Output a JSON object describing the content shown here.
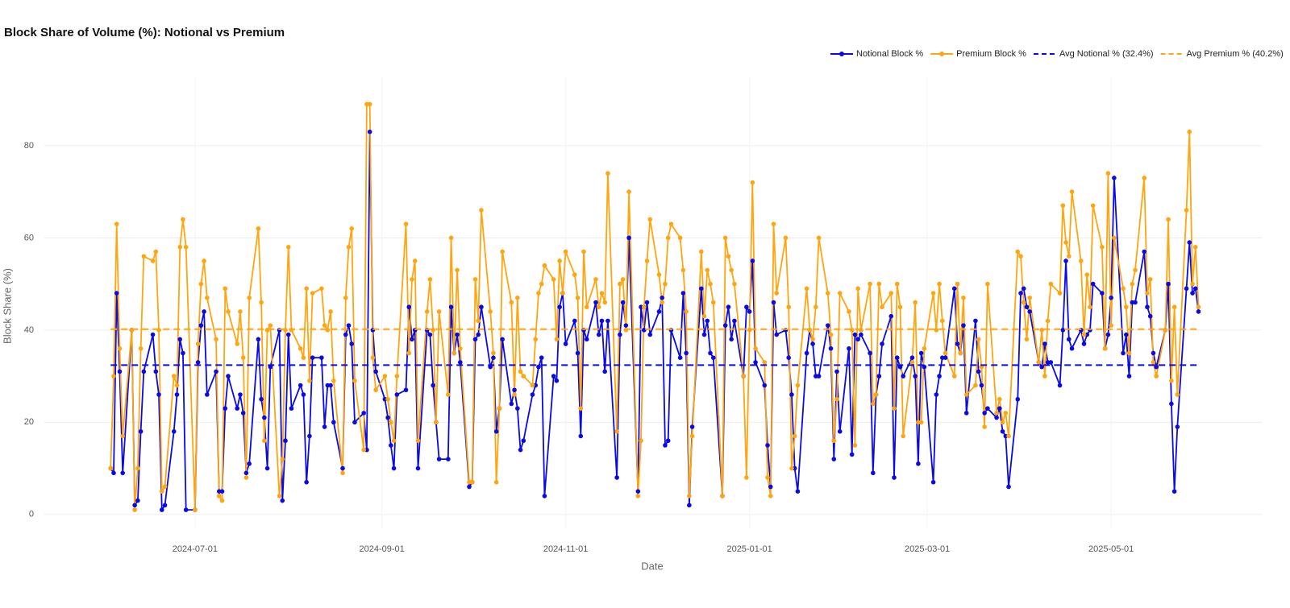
{
  "chart_data": {
    "type": "line",
    "title": "Block Share of Volume (%): Notional vs Premium",
    "x_label": "Date",
    "y_label": "Block Share (%)",
    "xlim": [
      "2024-05-12",
      "2025-06-20"
    ],
    "xticks": [
      "2024-07-01",
      "2024-09-01",
      "2024-11-01",
      "2025-01-01",
      "2025-03-01",
      "2025-05-01"
    ],
    "ylim": [
      -3,
      95
    ],
    "yticks": [
      0,
      20,
      40,
      60,
      80
    ],
    "grid": true,
    "legend": "top-right",
    "x": [
      "2024-06-03",
      "2024-06-04",
      "2024-06-05",
      "2024-06-06",
      "2024-06-07",
      "2024-06-10",
      "2024-06-11",
      "2024-06-12",
      "2024-06-13",
      "2024-06-14",
      "2024-06-17",
      "2024-06-18",
      "2024-06-19",
      "2024-06-20",
      "2024-06-21",
      "2024-06-24",
      "2024-06-25",
      "2024-06-26",
      "2024-06-27",
      "2024-06-28",
      "2024-07-01",
      "2024-07-02",
      "2024-07-03",
      "2024-07-04",
      "2024-07-05",
      "2024-07-08",
      "2024-07-09",
      "2024-07-10",
      "2024-07-11",
      "2024-07-12",
      "2024-07-15",
      "2024-07-16",
      "2024-07-17",
      "2024-07-18",
      "2024-07-19",
      "2024-07-22",
      "2024-07-23",
      "2024-07-24",
      "2024-07-25",
      "2024-07-26",
      "2024-07-29",
      "2024-07-30",
      "2024-07-31",
      "2024-08-01",
      "2024-08-02",
      "2024-08-05",
      "2024-08-06",
      "2024-08-07",
      "2024-08-08",
      "2024-08-09",
      "2024-08-12",
      "2024-08-13",
      "2024-08-14",
      "2024-08-15",
      "2024-08-16",
      "2024-08-19",
      "2024-08-20",
      "2024-08-21",
      "2024-08-22",
      "2024-08-23",
      "2024-08-26",
      "2024-08-27",
      "2024-08-28",
      "2024-08-29",
      "2024-08-30",
      "2024-09-02",
      "2024-09-03",
      "2024-09-04",
      "2024-09-05",
      "2024-09-06",
      "2024-09-09",
      "2024-09-10",
      "2024-09-11",
      "2024-09-12",
      "2024-09-13",
      "2024-09-16",
      "2024-09-17",
      "2024-09-18",
      "2024-09-19",
      "2024-09-20",
      "2024-09-23",
      "2024-09-24",
      "2024-09-25",
      "2024-09-26",
      "2024-09-27",
      "2024-09-30",
      "2024-10-01",
      "2024-10-02",
      "2024-10-03",
      "2024-10-04",
      "2024-10-07",
      "2024-10-08",
      "2024-10-09",
      "2024-10-10",
      "2024-10-11",
      "2024-10-14",
      "2024-10-15",
      "2024-10-16",
      "2024-10-17",
      "2024-10-18",
      "2024-10-21",
      "2024-10-22",
      "2024-10-23",
      "2024-10-24",
      "2024-10-25",
      "2024-10-28",
      "2024-10-29",
      "2024-10-30",
      "2024-10-31",
      "2024-11-01",
      "2024-11-04",
      "2024-11-05",
      "2024-11-06",
      "2024-11-07",
      "2024-11-08",
      "2024-11-11",
      "2024-11-12",
      "2024-11-13",
      "2024-11-14",
      "2024-11-15",
      "2024-11-18",
      "2024-11-19",
      "2024-11-20",
      "2024-11-21",
      "2024-11-22",
      "2024-11-25",
      "2024-11-26",
      "2024-11-27",
      "2024-11-28",
      "2024-11-29",
      "2024-12-02",
      "2024-12-03",
      "2024-12-04",
      "2024-12-05",
      "2024-12-06",
      "2024-12-09",
      "2024-12-10",
      "2024-12-11",
      "2024-12-12",
      "2024-12-13",
      "2024-12-16",
      "2024-12-17",
      "2024-12-18",
      "2024-12-19",
      "2024-12-20",
      "2024-12-23",
      "2024-12-24",
      "2024-12-25",
      "2024-12-26",
      "2024-12-27",
      "2024-12-30",
      "2024-12-31",
      "2025-01-01",
      "2025-01-02",
      "2025-01-03",
      "2025-01-06",
      "2025-01-07",
      "2025-01-08",
      "2025-01-09",
      "2025-01-10",
      "2025-01-13",
      "2025-01-14",
      "2025-01-15",
      "2025-01-16",
      "2025-01-17",
      "2025-01-20",
      "2025-01-21",
      "2025-01-22",
      "2025-01-23",
      "2025-01-24",
      "2025-01-27",
      "2025-01-28",
      "2025-01-29",
      "2025-01-30",
      "2025-01-31",
      "2025-02-03",
      "2025-02-04",
      "2025-02-05",
      "2025-02-06",
      "2025-02-07",
      "2025-02-10",
      "2025-02-11",
      "2025-02-12",
      "2025-02-13",
      "2025-02-14",
      "2025-02-17",
      "2025-02-18",
      "2025-02-19",
      "2025-02-20",
      "2025-02-21",
      "2025-02-24",
      "2025-02-25",
      "2025-02-26",
      "2025-02-27",
      "2025-02-28",
      "2025-03-03",
      "2025-03-04",
      "2025-03-05",
      "2025-03-06",
      "2025-03-07",
      "2025-03-10",
      "2025-03-11",
      "2025-03-12",
      "2025-03-13",
      "2025-03-14",
      "2025-03-17",
      "2025-03-18",
      "2025-03-19",
      "2025-03-20",
      "2025-03-21",
      "2025-03-24",
      "2025-03-25",
      "2025-03-26",
      "2025-03-27",
      "2025-03-28",
      "2025-03-31",
      "2025-04-01",
      "2025-04-02",
      "2025-04-03",
      "2025-04-04",
      "2025-04-07",
      "2025-04-08",
      "2025-04-09",
      "2025-04-10",
      "2025-04-11",
      "2025-04-14",
      "2025-04-15",
      "2025-04-16",
      "2025-04-17",
      "2025-04-18",
      "2025-04-21",
      "2025-04-22",
      "2025-04-23",
      "2025-04-24",
      "2025-04-25",
      "2025-04-28",
      "2025-04-29",
      "2025-04-30",
      "2025-05-01",
      "2025-05-02",
      "2025-05-05",
      "2025-05-06",
      "2025-05-07",
      "2025-05-08",
      "2025-05-09",
      "2025-05-12",
      "2025-05-13",
      "2025-05-14",
      "2025-05-15",
      "2025-05-16",
      "2025-05-19",
      "2025-05-20",
      "2025-05-21",
      "2025-05-22",
      "2025-05-23",
      "2025-05-26",
      "2025-05-27",
      "2025-05-28",
      "2025-05-29",
      "2025-05-30"
    ],
    "series": [
      {
        "name": "Notional Block %",
        "color": "#0a0ae6",
        "values": [
          10,
          9,
          48,
          31,
          9,
          40,
          2,
          3,
          18,
          31,
          39,
          31,
          26,
          1,
          2,
          18,
          26,
          38,
          35,
          1,
          1,
          33,
          41,
          44,
          26,
          31,
          5,
          5,
          23,
          30,
          23,
          26,
          22,
          9,
          11,
          38,
          25,
          21,
          10,
          32,
          40,
          3,
          16,
          39,
          23,
          28,
          26,
          7,
          17,
          34,
          34,
          19,
          28,
          28,
          20,
          10,
          39,
          41,
          37,
          20,
          22,
          14,
          83,
          40,
          31,
          25,
          21,
          15,
          10,
          26,
          27,
          45,
          38,
          40,
          10,
          40,
          39,
          28,
          20,
          12,
          12,
          45,
          35,
          39,
          33,
          6,
          7,
          38,
          39,
          45,
          32,
          34,
          18,
          23,
          38,
          24,
          27,
          23,
          14,
          16,
          26,
          28,
          32,
          34,
          4,
          30,
          29,
          45,
          48,
          37,
          42,
          35,
          17,
          40,
          38,
          46,
          39,
          42,
          31,
          42,
          8,
          39,
          46,
          41,
          60,
          5,
          45,
          40,
          46,
          39,
          44,
          47,
          15,
          16,
          40,
          34,
          48,
          35,
          2,
          19,
          49,
          39,
          42,
          35,
          34,
          4,
          41,
          45,
          38,
          42,
          30,
          45,
          44,
          55,
          33,
          28,
          15,
          6,
          46,
          39,
          40,
          34,
          26,
          10,
          5,
          35,
          40,
          37,
          30,
          30,
          41,
          36,
          12,
          31,
          18,
          36,
          13,
          39,
          38,
          39,
          35,
          9,
          26,
          30,
          37,
          43,
          8,
          34,
          32,
          30,
          34,
          30,
          11,
          35,
          32,
          7,
          26,
          30,
          34,
          34,
          49,
          37,
          35,
          41,
          22,
          42,
          31,
          28,
          22,
          23,
          21,
          23,
          18,
          17,
          6,
          25,
          48,
          49,
          45,
          44,
          33,
          32,
          37,
          33,
          33,
          28,
          40,
          55,
          38,
          36,
          40,
          37,
          39,
          40,
          50,
          48,
          36,
          39,
          47,
          73,
          35,
          39,
          30,
          46,
          46,
          57,
          45,
          43,
          35,
          32,
          40,
          50,
          24,
          5,
          19,
          49,
          59,
          48,
          49,
          44
        ]
      },
      {
        "name": "Premium Block %",
        "color": "#ffa50f",
        "values": [
          10,
          30,
          63,
          36,
          17,
          40,
          1,
          10,
          36,
          56,
          55,
          57,
          40,
          5,
          6,
          30,
          28,
          58,
          64,
          58,
          1,
          37,
          50,
          55,
          47,
          38,
          4,
          3,
          49,
          44,
          37,
          44,
          34,
          8,
          47,
          62,
          46,
          16,
          40,
          41,
          4,
          12,
          40,
          58,
          40,
          36,
          34,
          49,
          29,
          48,
          49,
          41,
          40,
          44,
          29,
          9,
          47,
          58,
          62,
          29,
          14,
          89,
          89,
          34,
          27,
          30,
          25,
          20,
          16,
          30,
          63,
          35,
          51,
          55,
          16,
          44,
          51,
          40,
          20,
          44,
          26,
          60,
          35,
          53,
          36,
          7,
          7,
          51,
          42,
          66,
          44,
          35,
          7,
          23,
          57,
          46,
          26,
          47,
          31,
          30,
          28,
          38,
          48,
          50,
          54,
          51,
          38,
          55,
          48,
          57,
          52,
          47,
          23,
          57,
          45,
          51,
          45,
          48,
          46,
          74,
          18,
          50,
          51,
          40,
          70,
          4,
          16,
          45,
          55,
          64,
          52,
          46,
          50,
          60,
          63,
          60,
          53,
          44,
          4,
          17,
          57,
          43,
          53,
          50,
          46,
          4,
          60,
          56,
          53,
          50,
          30,
          8,
          40,
          72,
          36,
          33,
          8,
          4,
          63,
          48,
          60,
          45,
          10,
          17,
          28,
          49,
          40,
          38,
          45,
          60,
          48,
          39,
          16,
          25,
          48,
          44,
          40,
          15,
          49,
          40,
          50,
          24,
          26,
          50,
          45,
          48,
          23,
          50,
          45,
          17,
          33,
          46,
          20,
          20,
          36,
          48,
          40,
          50,
          42,
          35,
          30,
          50,
          35,
          47,
          26,
          28,
          38,
          32,
          19,
          50,
          22,
          25,
          20,
          22,
          17,
          57,
          56,
          46,
          38,
          47,
          33,
          40,
          30,
          42,
          50,
          48,
          67,
          59,
          56,
          70,
          55,
          39,
          52,
          45,
          67,
          58,
          36,
          74,
          41,
          60,
          49,
          45,
          35,
          50,
          53,
          73,
          48,
          51,
          33,
          30,
          40,
          64,
          29,
          45,
          26,
          66,
          83,
          50,
          58,
          45
        ]
      }
    ],
    "reference_lines": [
      {
        "name": "Avg Notional % (32.4%)",
        "color": "#0a0ae6",
        "value": 32.4
      },
      {
        "name": "Avg Premium % (40.2%)",
        "color": "#ffa50f",
        "value": 40.2
      }
    ]
  }
}
